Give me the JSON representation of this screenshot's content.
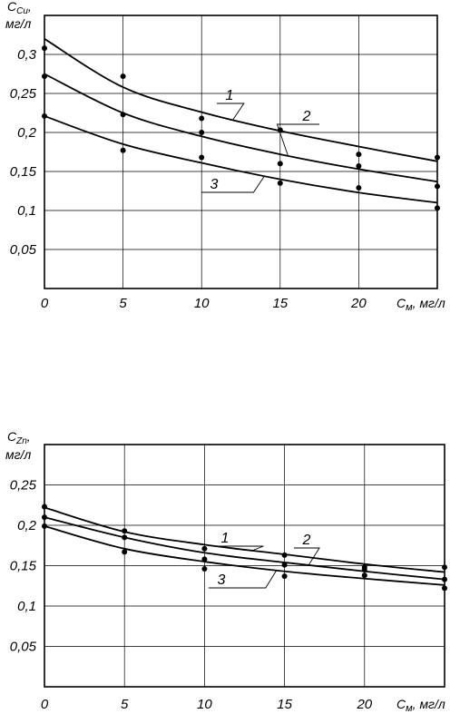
{
  "chart_data": [
    {
      "type": "scatter",
      "ylabel_main": "C",
      "ylabel_sub": "Cu",
      "ylabel_tail": ",",
      "ylabel_units": "мг/л",
      "xlabel_main": "C",
      "xlabel_sub": "м",
      "xlabel_units": ", мг/л",
      "xlim": [
        0,
        25
      ],
      "ylim": [
        0,
        0.35
      ],
      "xticks": [
        0,
        5,
        10,
        15,
        20
      ],
      "xtick_labels": [
        "0",
        "5",
        "10",
        "15",
        "20"
      ],
      "yticks": [
        0.05,
        0.1,
        0.15,
        0.2,
        0.25,
        0.3
      ],
      "ytick_labels": [
        "0,05",
        "0,1",
        "0,15",
        "0,2",
        "0,25",
        "0,3"
      ],
      "grid": true,
      "series": [
        {
          "name": "1",
          "points": [
            [
              0,
              0.308
            ],
            [
              5,
              0.272
            ],
            [
              10,
              0.218
            ],
            [
              15,
              0.203
            ],
            [
              20,
              0.172
            ],
            [
              25,
              0.168
            ]
          ],
          "curve": [
            [
              0,
              0.32
            ],
            [
              5,
              0.258
            ],
            [
              10,
              0.226
            ],
            [
              15,
              0.202
            ],
            [
              20,
              0.182
            ],
            [
              25,
              0.163
            ]
          ]
        },
        {
          "name": "2",
          "points": [
            [
              0,
              0.272
            ],
            [
              5,
              0.223
            ],
            [
              10,
              0.2
            ],
            [
              15,
              0.16
            ],
            [
              20,
              0.157
            ],
            [
              25,
              0.131
            ]
          ],
          "curve": [
            [
              0,
              0.275
            ],
            [
              5,
              0.225
            ],
            [
              10,
              0.195
            ],
            [
              15,
              0.172
            ],
            [
              20,
              0.153
            ],
            [
              25,
              0.137
            ]
          ]
        },
        {
          "name": "3",
          "points": [
            [
              0,
              0.221
            ],
            [
              5,
              0.177
            ],
            [
              10,
              0.168
            ],
            [
              15,
              0.135
            ],
            [
              20,
              0.129
            ],
            [
              25,
              0.103
            ]
          ],
          "curve": [
            [
              0,
              0.221
            ],
            [
              5,
              0.185
            ],
            [
              10,
              0.161
            ],
            [
              15,
              0.14
            ],
            [
              20,
              0.123
            ],
            [
              25,
              0.11
            ]
          ]
        }
      ]
    },
    {
      "type": "scatter",
      "ylabel_main": "C",
      "ylabel_sub": "Zn",
      "ylabel_tail": ",",
      "ylabel_units": "мг/л",
      "xlabel_main": "C",
      "xlabel_sub": "м",
      "xlabel_units": ", мг/л",
      "xlim": [
        0,
        25
      ],
      "ylim": [
        0,
        0.3
      ],
      "xticks": [
        0,
        5,
        10,
        15,
        20
      ],
      "xtick_labels": [
        "0",
        "5",
        "10",
        "15",
        "20"
      ],
      "yticks": [
        0.05,
        0.1,
        0.15,
        0.2,
        0.25
      ],
      "ytick_labels": [
        "0,05",
        "0,1",
        "0,15",
        "0,2",
        "0,25"
      ],
      "grid": true,
      "series": [
        {
          "name": "1",
          "points": [
            [
              0,
              0.223
            ],
            [
              5,
              0.193
            ],
            [
              10,
              0.171
            ],
            [
              15,
              0.163
            ],
            [
              20,
              0.148
            ],
            [
              25,
              0.148
            ]
          ],
          "curve": [
            [
              0,
              0.222
            ],
            [
              5,
              0.192
            ],
            [
              10,
              0.176
            ],
            [
              15,
              0.164
            ],
            [
              20,
              0.152
            ],
            [
              25,
              0.142
            ]
          ]
        },
        {
          "name": "2",
          "points": [
            [
              0,
              0.21
            ],
            [
              5,
              0.185
            ],
            [
              10,
              0.158
            ],
            [
              15,
              0.151
            ],
            [
              20,
              0.145
            ],
            [
              25,
              0.133
            ]
          ],
          "curve": [
            [
              0,
              0.21
            ],
            [
              5,
              0.185
            ],
            [
              10,
              0.166
            ],
            [
              15,
              0.154
            ],
            [
              20,
              0.143
            ],
            [
              25,
              0.133
            ]
          ]
        },
        {
          "name": "3",
          "points": [
            [
              0,
              0.199
            ],
            [
              5,
              0.167
            ],
            [
              10,
              0.146
            ],
            [
              15,
              0.137
            ],
            [
              20,
              0.138
            ],
            [
              25,
              0.122
            ]
          ],
          "curve": [
            [
              0,
              0.199
            ],
            [
              5,
              0.171
            ],
            [
              10,
              0.155
            ],
            [
              15,
              0.143
            ],
            [
              20,
              0.134
            ],
            [
              25,
              0.126
            ]
          ]
        }
      ]
    }
  ]
}
